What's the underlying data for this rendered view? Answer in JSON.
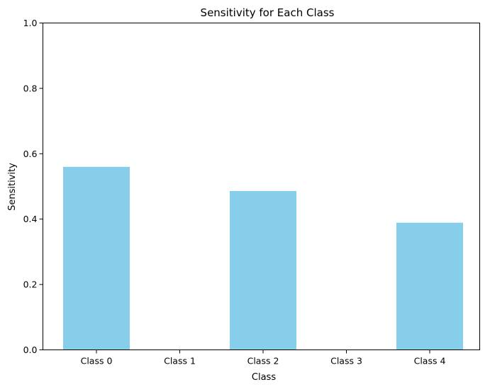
{
  "chart_data": {
    "type": "bar",
    "title": "Sensitivity for Each Class",
    "xlabel": "Class",
    "ylabel": "Sensitivity",
    "categories": [
      "Class 0",
      "Class 1",
      "Class 2",
      "Class 3",
      "Class 4"
    ],
    "values": [
      0.56,
      0.0,
      0.486,
      0.0,
      0.389
    ],
    "ylim": [
      0,
      1
    ],
    "yticks": [
      "0.0",
      "0.2",
      "0.4",
      "0.6",
      "0.8",
      "1.0"
    ],
    "grid": false,
    "bar_color": "#87ceeb"
  }
}
